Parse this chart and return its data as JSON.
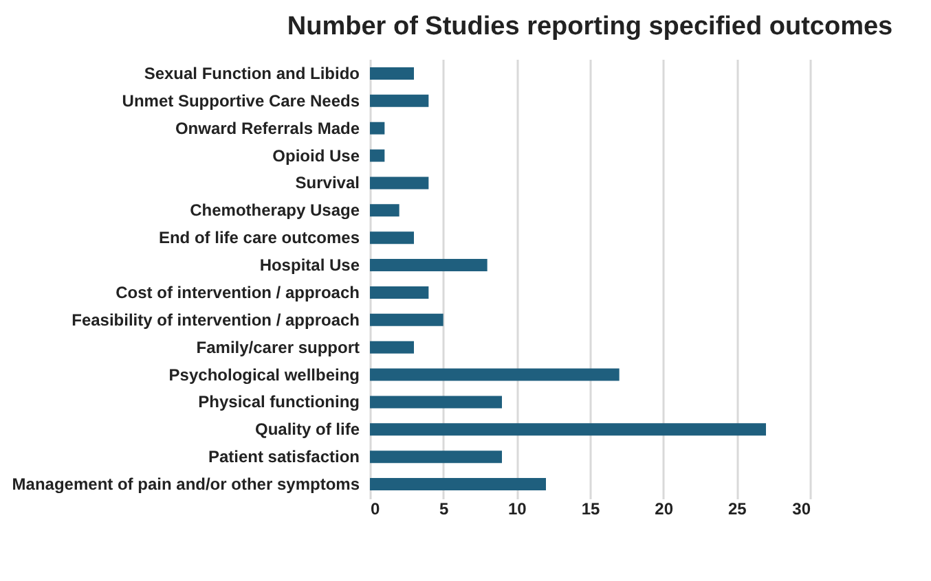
{
  "chart_data": {
    "type": "bar",
    "orientation": "horizontal",
    "title": "Number of Studies reporting specified outcomes",
    "categories": [
      "Sexual Function and Libido",
      "Unmet Supportive Care Needs",
      "Onward Referrals Made",
      "Opioid Use",
      "Survival",
      "Chemotherapy Usage",
      "End of life care outcomes",
      "Hospital Use",
      "Cost of intervention / approach",
      "Feasibility of intervention / approach",
      "Family/carer support",
      "Psychological wellbeing",
      "Physical functioning",
      "Quality of life",
      "Patient satisfaction",
      "Management of pain and/or other symptoms"
    ],
    "values": [
      3,
      4,
      1,
      1,
      4,
      2,
      3,
      8,
      4,
      5,
      3,
      17,
      9,
      27,
      9,
      12
    ],
    "color": "#1f5f7e",
    "xlim": [
      0,
      30
    ],
    "xticks": [
      0,
      5,
      10,
      15,
      20,
      25,
      30
    ],
    "grid": "x"
  }
}
